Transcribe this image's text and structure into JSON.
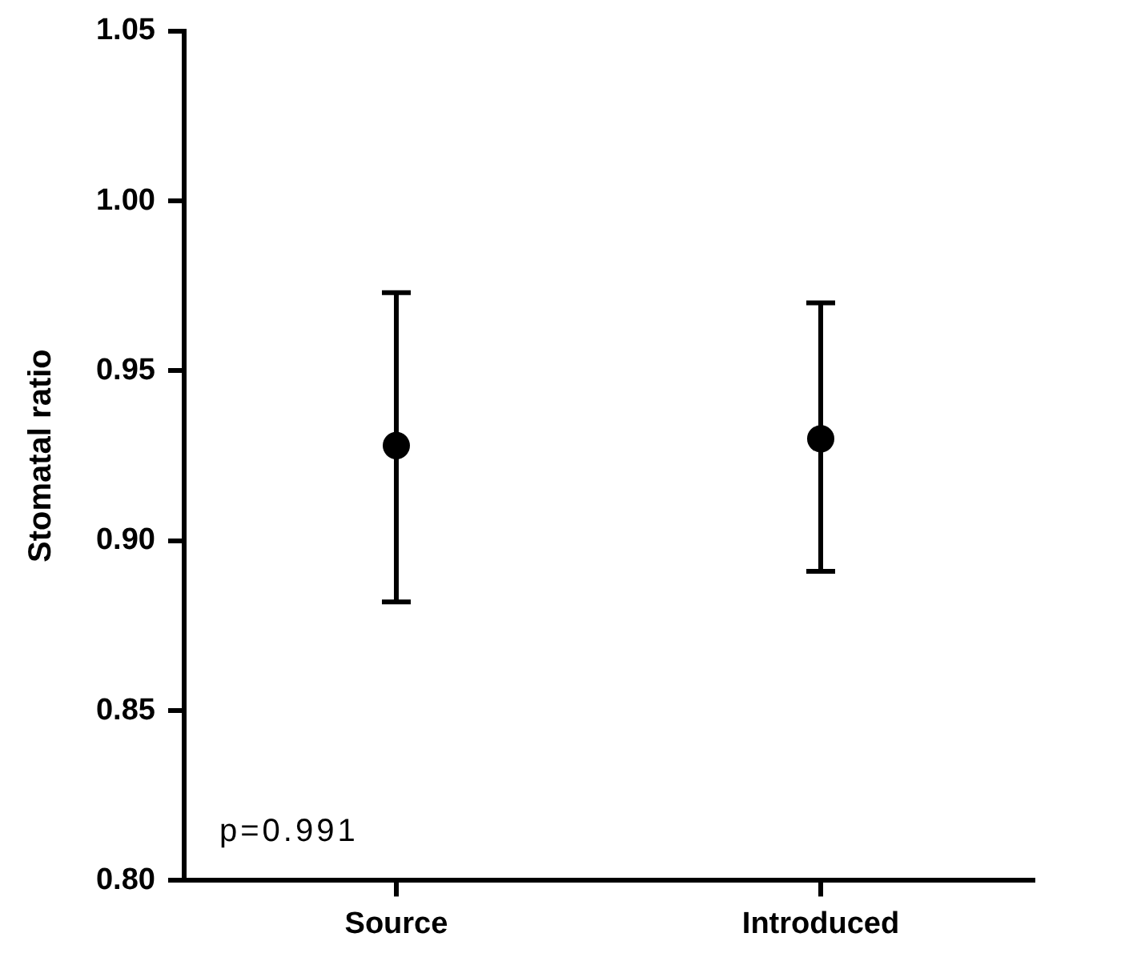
{
  "chart_data": {
    "type": "scatter",
    "ylabel": "Stomatal ratio",
    "categories": [
      "Source",
      "Introduced"
    ],
    "series": [
      {
        "color": "#000000",
        "values": [
          0.928,
          0.93
        ],
        "errors": [
          [
            0.882,
            0.973
          ],
          [
            0.891,
            0.97
          ]
        ]
      }
    ],
    "ylim": [
      0.8,
      1.05
    ],
    "yticks": [
      {
        "value": 0.8,
        "label": "0.80"
      },
      {
        "value": 0.85,
        "label": "0.85"
      },
      {
        "value": 0.9,
        "label": "0.90"
      },
      {
        "value": 0.95,
        "label": "0.95"
      },
      {
        "value": 1.0,
        "label": "1.00"
      },
      {
        "value": 1.05,
        "label": "1.05"
      }
    ],
    "annotations": [
      "p=0.991"
    ],
    "grid": false,
    "legend": false,
    "marker": "circle"
  }
}
